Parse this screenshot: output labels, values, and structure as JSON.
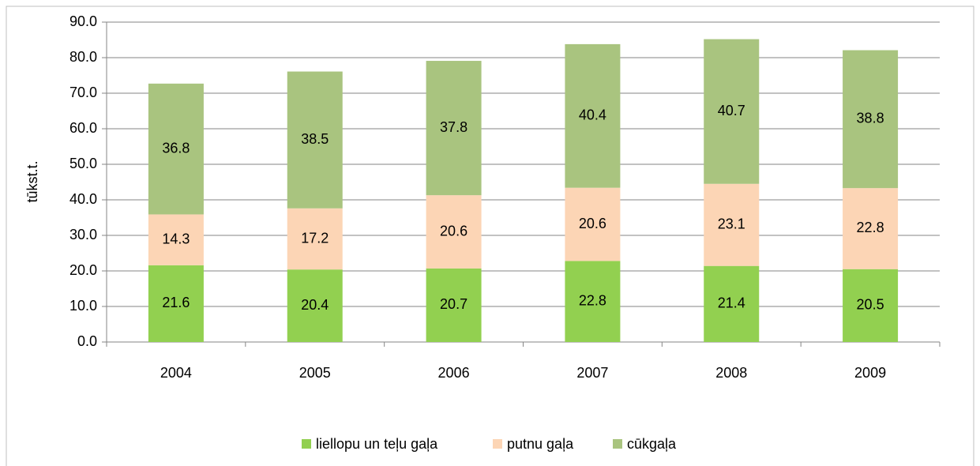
{
  "chart_data": {
    "type": "stacked_bar",
    "y_label": "tūkst.t.",
    "categories": [
      "2004",
      "2005",
      "2006",
      "2007",
      "2008",
      "2009"
    ],
    "series": [
      {
        "name": "liellopu un teļu gaļa",
        "color": "#92d050",
        "values": [
          21.6,
          20.4,
          20.7,
          22.8,
          21.4,
          20.5
        ]
      },
      {
        "name": "putnu gaļa",
        "color": "#fcd5b5",
        "values": [
          14.3,
          17.2,
          20.6,
          20.6,
          23.1,
          22.8
        ]
      },
      {
        "name": "cūkgaļa",
        "color": "#a9c47f",
        "values": [
          36.8,
          38.5,
          37.8,
          40.4,
          40.7,
          38.8
        ]
      }
    ],
    "ylim": [
      0,
      90
    ],
    "yticks": [
      {
        "value": 0,
        "label": "0.0"
      },
      {
        "value": 10,
        "label": "10.0"
      },
      {
        "value": 20,
        "label": "20.0"
      },
      {
        "value": 30,
        "label": "30.0"
      },
      {
        "value": 40,
        "label": "40.0"
      },
      {
        "value": 50,
        "label": "50.0"
      },
      {
        "value": 60,
        "label": "60.0"
      },
      {
        "value": 70,
        "label": "70.0"
      },
      {
        "value": 80,
        "label": "80.0"
      },
      {
        "value": 90,
        "label": "90.0"
      }
    ],
    "grid": true,
    "legend": "bottom"
  }
}
